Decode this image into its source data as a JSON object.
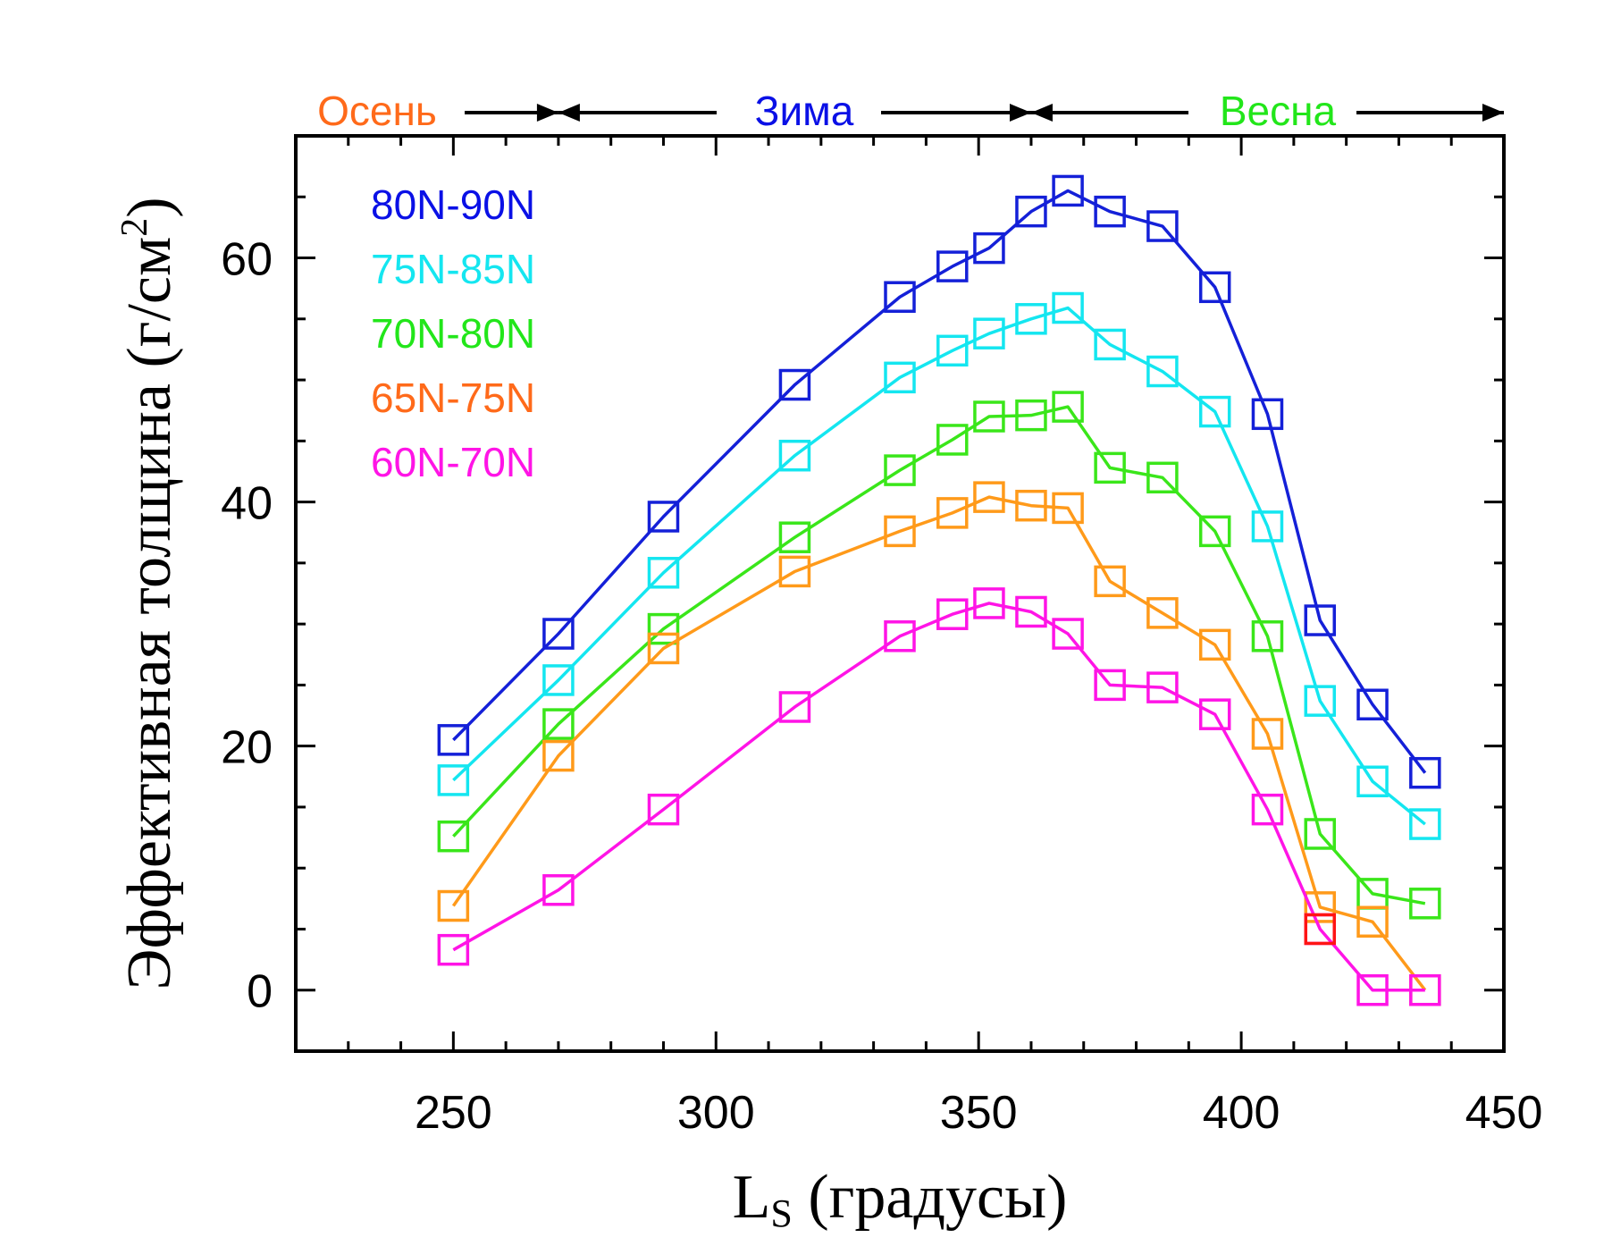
{
  "chart_data": {
    "type": "line",
    "xlabel_main": "L",
    "xlabel_sub": "S",
    "xlabel_rest": " (градусы)",
    "ylabel_main": "Эффективная толщина (г/см",
    "ylabel_sup": "2",
    "ylabel_end": ")",
    "xlim": [
      220,
      450
    ],
    "ylim": [
      -5,
      70
    ],
    "xticks": [
      250,
      300,
      350,
      400,
      450
    ],
    "yticks": [
      0,
      20,
      40,
      60
    ],
    "seasons": [
      {
        "label": "Осень",
        "color": "#ff6a1a"
      },
      {
        "label": "Зима",
        "color": "#0a10e6"
      },
      {
        "label": "Весна",
        "color": "#22e61a"
      }
    ],
    "season_boundaries": [
      270,
      360
    ],
    "season_axis_end": 450,
    "x": [
      250,
      270,
      290,
      315,
      335,
      345,
      352,
      360,
      367,
      375,
      385,
      395,
      405,
      415,
      425,
      435
    ],
    "series": [
      {
        "name": "80N-90N",
        "color": "#1420d8",
        "values": [
          20.5,
          29.2,
          38.8,
          49.6,
          56.8,
          59.3,
          60.8,
          63.8,
          65.5,
          63.8,
          62.6,
          57.6,
          47.2,
          30.3,
          23.4,
          17.8
        ]
      },
      {
        "name": "75N-85N",
        "color": "#14e6f0",
        "values": [
          17.2,
          25.4,
          34.2,
          43.8,
          50.2,
          52.4,
          53.8,
          55.0,
          55.9,
          52.9,
          50.7,
          47.4,
          38.0,
          23.7,
          17.1,
          13.6
        ]
      },
      {
        "name": "70N-80N",
        "color": "#3ae61a",
        "values": [
          12.6,
          21.8,
          29.6,
          37.1,
          42.6,
          45.1,
          47.0,
          47.1,
          47.8,
          42.8,
          42.0,
          37.6,
          29.0,
          12.8,
          7.9,
          7.1
        ]
      },
      {
        "name": "65N-75N",
        "color": "#ff9a1a",
        "values": [
          6.9,
          19.2,
          28.0,
          34.3,
          37.6,
          39.1,
          40.4,
          39.7,
          39.5,
          33.5,
          30.9,
          28.3,
          21.0,
          6.8,
          5.6,
          0.0
        ]
      },
      {
        "name": "60N-70N",
        "color": "#ff14e6",
        "values": [
          3.3,
          8.2,
          14.8,
          23.2,
          29.0,
          30.8,
          31.7,
          31.0,
          29.2,
          25.0,
          24.8,
          22.6,
          14.8,
          5.0,
          0.0,
          0.0
        ]
      }
    ],
    "legend_colors": [
      "#0a10e6",
      "#14e6f0",
      "#22e61a",
      "#ff6a1a",
      "#ff14e6"
    ],
    "extra_point": {
      "x": 415,
      "y": 5.0,
      "color": "#ff1414"
    }
  }
}
